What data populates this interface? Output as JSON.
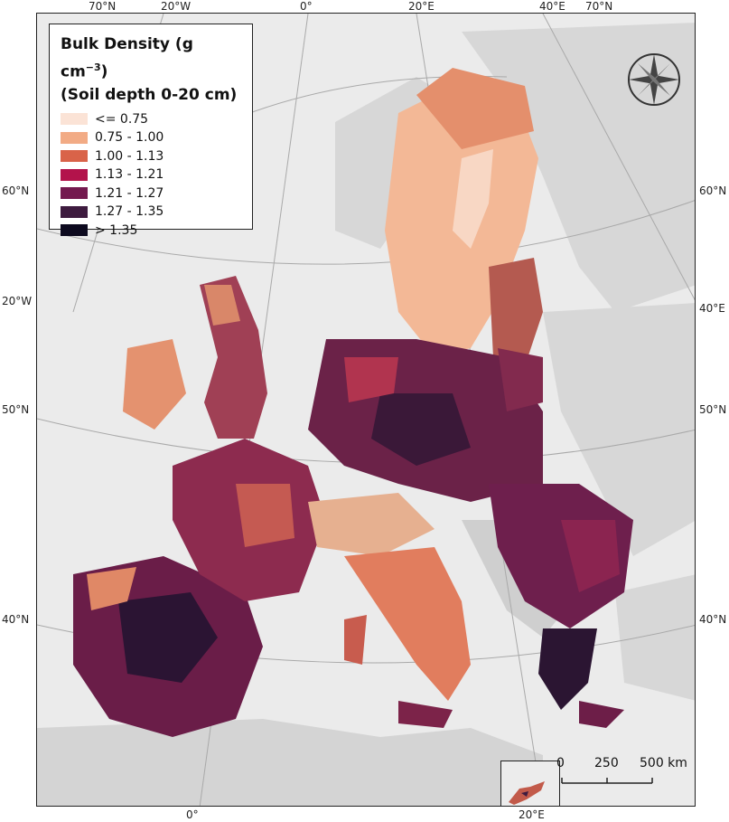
{
  "legend": {
    "title_line1": "Bulk Density (g cm",
    "title_sup": "−3",
    "title_line1_end": ")",
    "title_line2": "(Soil depth 0-20 cm)",
    "classes": [
      {
        "label": "<= 0.75",
        "color": "#fbe3d6"
      },
      {
        "label": "0.75 - 1.00",
        "color": "#f2ab85"
      },
      {
        "label": "1.00 - 1.13",
        "color": "#d96349"
      },
      {
        "label": "1.13 - 1.21",
        "color": "#b3134b"
      },
      {
        "label": "1.21 - 1.27",
        "color": "#741a4f"
      },
      {
        "label": "1.27 - 1.35",
        "color": "#3e1b3f"
      },
      {
        "label": "> 1.35",
        "color": "#0d0a1f"
      }
    ]
  },
  "graticule_labels": {
    "top": [
      "70°N",
      "20°W",
      "0°",
      "20°E",
      "40°E",
      "70°N"
    ],
    "left": [
      "60°N",
      "20°W",
      "50°N",
      "40°N"
    ],
    "right": [
      "60°N",
      "40°E",
      "50°N",
      "40°N"
    ],
    "bottom": [
      "0°",
      "20°E"
    ]
  },
  "scale_bar": {
    "labels": [
      "0",
      "250",
      "500 km"
    ]
  },
  "icons": {
    "compass": "compass-rose-icon"
  },
  "colors": {
    "land_background": "#d9d9d9",
    "sea": "#ebebeb"
  }
}
